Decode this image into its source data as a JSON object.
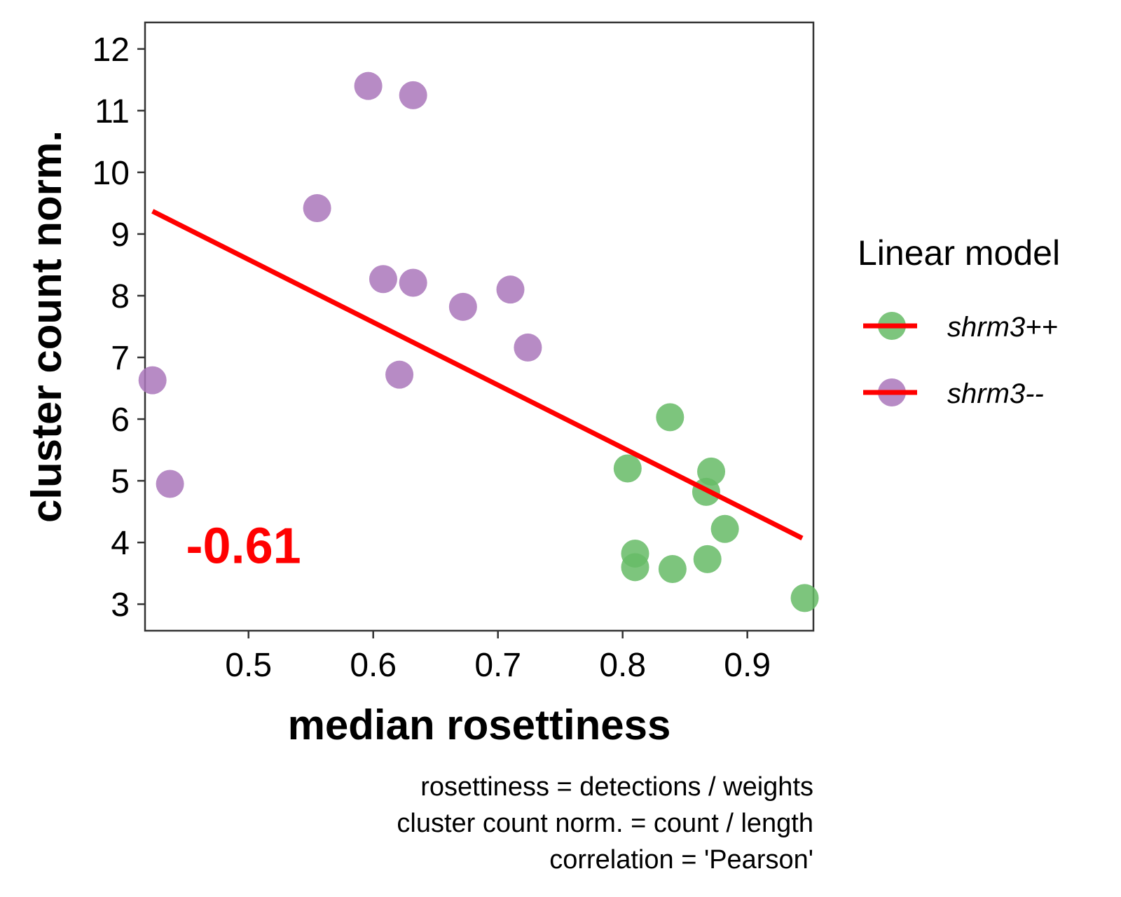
{
  "chart_data": {
    "type": "scatter",
    "xlabel": "median rosettiness",
    "ylabel": "cluster count norm.",
    "xlim": [
      0.417,
      0.953
    ],
    "ylim": [
      2.57,
      12.43
    ],
    "x_ticks": [
      "0.5",
      "0.6",
      "0.7",
      "0.8",
      "0.9"
    ],
    "y_ticks": [
      "3",
      "4",
      "5",
      "6",
      "7",
      "8",
      "9",
      "10",
      "11",
      "12"
    ],
    "grid": false,
    "legend": {
      "title": "Linear model",
      "placement": "right",
      "entries": [
        "shrm3++",
        "shrm3--"
      ]
    },
    "series": [
      {
        "name": "shrm3++",
        "color": "#66BB66",
        "points": [
          {
            "x": 0.804,
            "y": 5.2
          },
          {
            "x": 0.838,
            "y": 6.03
          },
          {
            "x": 0.871,
            "y": 5.15
          },
          {
            "x": 0.867,
            "y": 4.82
          },
          {
            "x": 0.882,
            "y": 4.22
          },
          {
            "x": 0.81,
            "y": 3.82
          },
          {
            "x": 0.81,
            "y": 3.6
          },
          {
            "x": 0.84,
            "y": 3.57
          },
          {
            "x": 0.868,
            "y": 3.73
          },
          {
            "x": 0.946,
            "y": 3.1
          }
        ]
      },
      {
        "name": "shrm3--",
        "color": "#AA77BB",
        "points": [
          {
            "x": 0.596,
            "y": 11.4
          },
          {
            "x": 0.632,
            "y": 11.25
          },
          {
            "x": 0.555,
            "y": 9.42
          },
          {
            "x": 0.608,
            "y": 8.27
          },
          {
            "x": 0.632,
            "y": 8.21
          },
          {
            "x": 0.672,
            "y": 7.82
          },
          {
            "x": 0.71,
            "y": 8.1
          },
          {
            "x": 0.724,
            "y": 7.16
          },
          {
            "x": 0.621,
            "y": 6.72
          },
          {
            "x": 0.423,
            "y": 6.63
          },
          {
            "x": 0.437,
            "y": 4.95
          }
        ]
      }
    ],
    "fit_line": {
      "color": "#FF0000",
      "x": [
        0.423,
        0.944
      ],
      "y": [
        9.37,
        4.07
      ]
    },
    "annotations": [
      {
        "text": "-0.61",
        "x": 0.496,
        "y": 3.95,
        "color": "#FF0000"
      }
    ],
    "caption": [
      "rosettiness = detections / weights",
      "cluster count norm. = count / length",
      "correlation = 'Pearson'"
    ]
  }
}
